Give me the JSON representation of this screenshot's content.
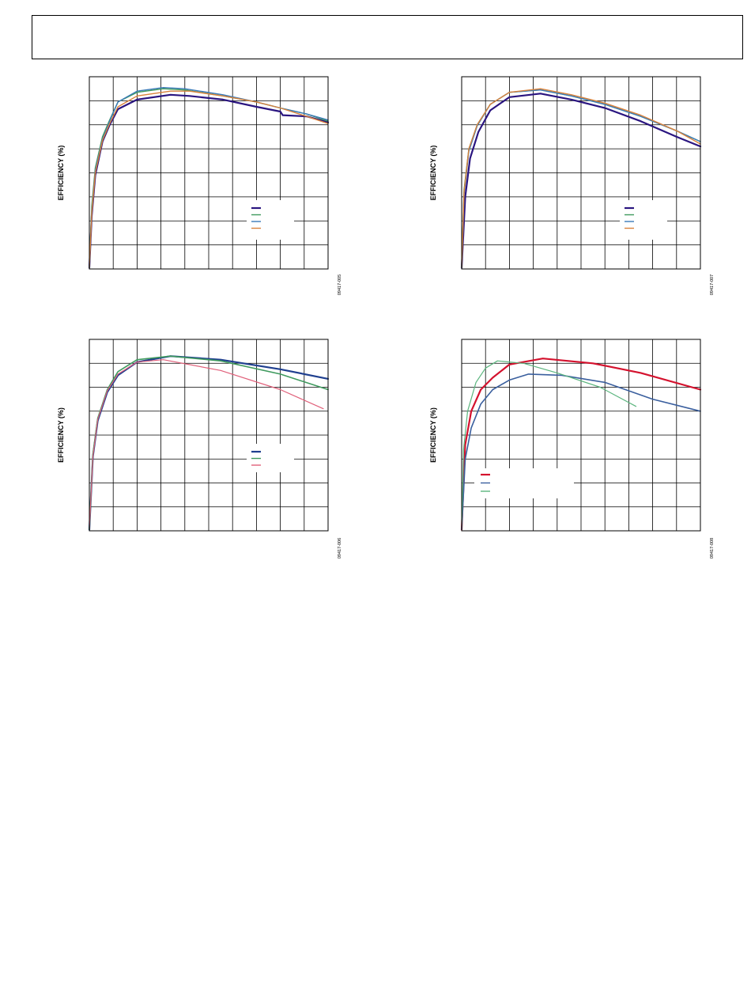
{
  "page": {
    "header_text": ""
  },
  "chart_data": [
    {
      "type": "line",
      "ylabel": "EFFICIENCY (%)",
      "xlabel": "",
      "figure_id": "09417-005",
      "xlim": [
        0,
        10
      ],
      "ylim": [
        0,
        8
      ],
      "grid": true,
      "legend_position": "lower-right",
      "series": [
        {
          "color": "#2a1580",
          "width": 2.2,
          "points": [
            [
              0,
              0.05
            ],
            [
              0.1,
              2.2
            ],
            [
              0.25,
              3.9
            ],
            [
              0.55,
              5.3
            ],
            [
              0.85,
              6.0
            ],
            [
              1.2,
              6.65
            ],
            [
              2,
              7.05
            ],
            [
              3.4,
              7.25
            ],
            [
              4.2,
              7.2
            ],
            [
              5.6,
              7.05
            ],
            [
              7,
              6.75
            ],
            [
              8,
              6.55
            ],
            [
              8.1,
              6.4
            ],
            [
              9.1,
              6.35
            ],
            [
              10,
              6.1
            ]
          ]
        },
        {
          "color": "#3f9a5e",
          "width": 1.4,
          "points": [
            [
              0,
              0.05
            ],
            [
              0.1,
              2.6
            ],
            [
              0.25,
              4.2
            ],
            [
              0.55,
              5.5
            ],
            [
              0.85,
              6.2
            ],
            [
              1.2,
              6.95
            ],
            [
              2,
              7.35
            ],
            [
              3.1,
              7.5
            ],
            [
              4,
              7.45
            ],
            [
              5.6,
              7.2
            ],
            [
              7,
              6.95
            ],
            [
              8,
              6.7
            ],
            [
              9.1,
              6.45
            ],
            [
              10,
              6.15
            ]
          ]
        },
        {
          "color": "#3a7ab8",
          "width": 1.4,
          "points": [
            [
              0,
              0.05
            ],
            [
              0.1,
              2.4
            ],
            [
              0.25,
              4.1
            ],
            [
              0.55,
              5.4
            ],
            [
              0.85,
              6.15
            ],
            [
              1.2,
              6.95
            ],
            [
              2,
              7.4
            ],
            [
              3.1,
              7.55
            ],
            [
              4,
              7.5
            ],
            [
              5.6,
              7.25
            ],
            [
              7,
              6.95
            ],
            [
              8,
              6.7
            ],
            [
              9.1,
              6.45
            ],
            [
              10,
              6.2
            ]
          ]
        },
        {
          "color": "#d9823b",
          "width": 1.4,
          "points": [
            [
              0,
              0.05
            ],
            [
              0.1,
              2.3
            ],
            [
              0.25,
              4.0
            ],
            [
              0.55,
              5.35
            ],
            [
              0.85,
              6.05
            ],
            [
              1.2,
              6.75
            ],
            [
              2,
              7.2
            ],
            [
              3.4,
              7.4
            ],
            [
              4.2,
              7.4
            ],
            [
              5.6,
              7.2
            ],
            [
              7,
              6.95
            ],
            [
              8,
              6.7
            ],
            [
              9.1,
              6.35
            ],
            [
              10,
              6.05
            ]
          ]
        }
      ],
      "legend": [
        {
          "color": "#2a1580",
          "label": ""
        },
        {
          "color": "#3f9a5e",
          "label": ""
        },
        {
          "color": "#3a7ab8",
          "label": ""
        },
        {
          "color": "#d9823b",
          "label": ""
        }
      ]
    },
    {
      "type": "line",
      "ylabel": "EFFICIENCY (%)",
      "xlabel": "",
      "figure_id": "09417-007",
      "xlim": [
        0,
        10
      ],
      "ylim": [
        0,
        8
      ],
      "grid": true,
      "legend_position": "lower-right",
      "series": [
        {
          "color": "#2a1580",
          "width": 2.2,
          "points": [
            [
              0,
              0.05
            ],
            [
              0.15,
              3.0
            ],
            [
              0.35,
              4.6
            ],
            [
              0.7,
              5.7
            ],
            [
              1.2,
              6.6
            ],
            [
              2,
              7.15
            ],
            [
              3.3,
              7.3
            ],
            [
              4.6,
              7.05
            ],
            [
              6,
              6.7
            ],
            [
              7.5,
              6.15
            ],
            [
              9,
              5.5
            ],
            [
              10,
              5.1
            ]
          ]
        },
        {
          "color": "#3f9a5e",
          "width": 1.4,
          "points": [
            [
              0,
              0.05
            ],
            [
              0.1,
              3.3
            ],
            [
              0.3,
              5.0
            ],
            [
              0.65,
              6.0
            ],
            [
              1.2,
              6.85
            ],
            [
              2,
              7.35
            ],
            [
              3.3,
              7.45
            ],
            [
              4.6,
              7.2
            ],
            [
              6,
              6.85
            ],
            [
              7.5,
              6.35
            ],
            [
              9,
              5.75
            ],
            [
              10,
              5.3
            ]
          ]
        },
        {
          "color": "#3a7ab8",
          "width": 1.4,
          "points": [
            [
              0,
              0.05
            ],
            [
              0.1,
              3.1
            ],
            [
              0.3,
              4.9
            ],
            [
              0.65,
              5.95
            ],
            [
              1.2,
              6.85
            ],
            [
              2,
              7.35
            ],
            [
              3.3,
              7.45
            ],
            [
              4.6,
              7.2
            ],
            [
              6,
              6.85
            ],
            [
              7.5,
              6.35
            ],
            [
              9,
              5.75
            ],
            [
              10,
              5.3
            ]
          ]
        },
        {
          "color": "#d9823b",
          "width": 1.4,
          "points": [
            [
              0,
              0.05
            ],
            [
              0.1,
              3.2
            ],
            [
              0.3,
              5.0
            ],
            [
              0.65,
              6.0
            ],
            [
              1.2,
              6.85
            ],
            [
              2,
              7.35
            ],
            [
              3.3,
              7.5
            ],
            [
              4.6,
              7.25
            ],
            [
              6,
              6.9
            ],
            [
              7.5,
              6.4
            ],
            [
              9,
              5.75
            ],
            [
              10,
              5.2
            ]
          ]
        }
      ],
      "legend": [
        {
          "color": "#2a1580",
          "label": ""
        },
        {
          "color": "#3f9a5e",
          "label": ""
        },
        {
          "color": "#3a7ab8",
          "label": ""
        },
        {
          "color": "#d9823b",
          "label": ""
        }
      ]
    },
    {
      "type": "line",
      "ylabel": "EFFICIENCY (%)",
      "xlabel": "",
      "figure_id": "09417-006",
      "xlim": [
        0,
        10
      ],
      "ylim": [
        0,
        8
      ],
      "grid": true,
      "legend_position": "lower-right",
      "series": [
        {
          "color": "#1f3f8f",
          "width": 2.2,
          "points": [
            [
              0,
              0.05
            ],
            [
              0.15,
              3.1
            ],
            [
              0.35,
              4.6
            ],
            [
              0.75,
              5.8
            ],
            [
              1.2,
              6.5
            ],
            [
              2,
              7.05
            ],
            [
              3.4,
              7.3
            ],
            [
              5.5,
              7.15
            ],
            [
              8,
              6.75
            ],
            [
              10,
              6.35
            ]
          ]
        },
        {
          "color": "#3f9a5e",
          "width": 1.6,
          "points": [
            [
              0,
              0.05
            ],
            [
              0.15,
              3.2
            ],
            [
              0.35,
              4.7
            ],
            [
              0.75,
              5.9
            ],
            [
              1.2,
              6.65
            ],
            [
              2,
              7.15
            ],
            [
              3.4,
              7.3
            ],
            [
              5.5,
              7.1
            ],
            [
              8,
              6.55
            ],
            [
              10,
              5.9
            ]
          ]
        },
        {
          "color": "#e0607a",
          "width": 1.2,
          "points": [
            [
              0,
              0.05
            ],
            [
              0.15,
              3.1
            ],
            [
              0.35,
              4.65
            ],
            [
              0.75,
              5.85
            ],
            [
              1.2,
              6.55
            ],
            [
              2,
              7.05
            ],
            [
              3.1,
              7.15
            ],
            [
              5.5,
              6.7
            ],
            [
              8,
              5.9
            ],
            [
              9.8,
              5.1
            ]
          ]
        }
      ],
      "legend": [
        {
          "color": "#1f3f8f",
          "label": ""
        },
        {
          "color": "#3f9a5e",
          "label": ""
        },
        {
          "color": "#e0607a",
          "label": ""
        }
      ]
    },
    {
      "type": "line",
      "ylabel": "EFFICIENCY (%)",
      "xlabel": "",
      "figure_id": "09417-008",
      "xlim": [
        0,
        10
      ],
      "ylim": [
        0,
        8
      ],
      "grid": true,
      "legend_position": "lower-left",
      "series": [
        {
          "color": "#d4122e",
          "width": 2.2,
          "points": [
            [
              0,
              0.05
            ],
            [
              0.15,
              3.6
            ],
            [
              0.4,
              5.0
            ],
            [
              0.8,
              5.9
            ],
            [
              1.3,
              6.4
            ],
            [
              2,
              6.95
            ],
            [
              3.4,
              7.2
            ],
            [
              5.5,
              7.0
            ],
            [
              7.5,
              6.6
            ],
            [
              10,
              5.9
            ]
          ]
        },
        {
          "color": "#3a5f9e",
          "width": 1.6,
          "points": [
            [
              0,
              0.05
            ],
            [
              0.15,
              3.0
            ],
            [
              0.4,
              4.3
            ],
            [
              0.8,
              5.3
            ],
            [
              1.3,
              5.9
            ],
            [
              2,
              6.3
            ],
            [
              2.8,
              6.55
            ],
            [
              4.2,
              6.5
            ],
            [
              6,
              6.2
            ],
            [
              8,
              5.5
            ],
            [
              10,
              5.0
            ]
          ]
        },
        {
          "color": "#5bb57e",
          "width": 1.2,
          "points": [
            [
              0,
              0.05
            ],
            [
              0.08,
              3.4
            ],
            [
              0.25,
              5.0
            ],
            [
              0.6,
              6.2
            ],
            [
              1,
              6.8
            ],
            [
              1.5,
              7.1
            ],
            [
              2.6,
              7.0
            ],
            [
              4,
              6.6
            ],
            [
              5.8,
              6.0
            ],
            [
              7.3,
              5.2
            ]
          ]
        }
      ],
      "legend": [
        {
          "color": "#d4122e",
          "label": ""
        },
        {
          "color": "#3a5f9e",
          "label": ""
        },
        {
          "color": "#5bb57e",
          "label": ""
        }
      ]
    }
  ]
}
